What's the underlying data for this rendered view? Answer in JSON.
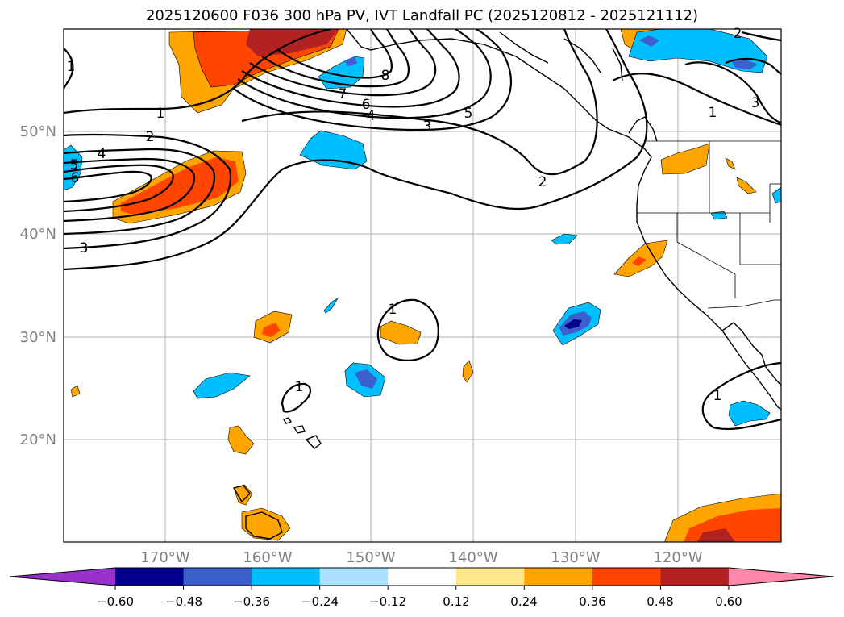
{
  "title": "2025120600 F036 300 hPa PV, IVT Landfall PC (2025120812 - 2025121112)",
  "map": {
    "lat_ticks": [
      "50°N",
      "40°N",
      "30°N",
      "20°N"
    ],
    "lon_ticks": [
      "170°W",
      "160°W",
      "150°W",
      "140°W",
      "130°W",
      "120°W"
    ],
    "extent": {
      "lon_min": -180,
      "lon_max": -110,
      "lat_min": 10,
      "lat_max": 60
    },
    "contour_labels": [
      "1",
      "2",
      "3",
      "4",
      "5",
      "6",
      "7",
      "8",
      "1",
      "1",
      "1",
      "1",
      "3",
      "2",
      "2",
      "3",
      "4",
      "5",
      "6",
      "1",
      "5",
      "4",
      "3"
    ]
  },
  "colorbar": {
    "ticks": [
      "−0.60",
      "−0.48",
      "−0.36",
      "−0.24",
      "−0.12",
      "0.12",
      "0.24",
      "0.36",
      "0.48",
      "0.60"
    ],
    "colors": [
      "#9932cc",
      "#00008b",
      "#3b5fcd",
      "#00bfff",
      "#addfff",
      "#ffffff",
      "#fde98b",
      "#ffa500",
      "#ff4500",
      "#b22222",
      "#ff88aa"
    ]
  }
}
